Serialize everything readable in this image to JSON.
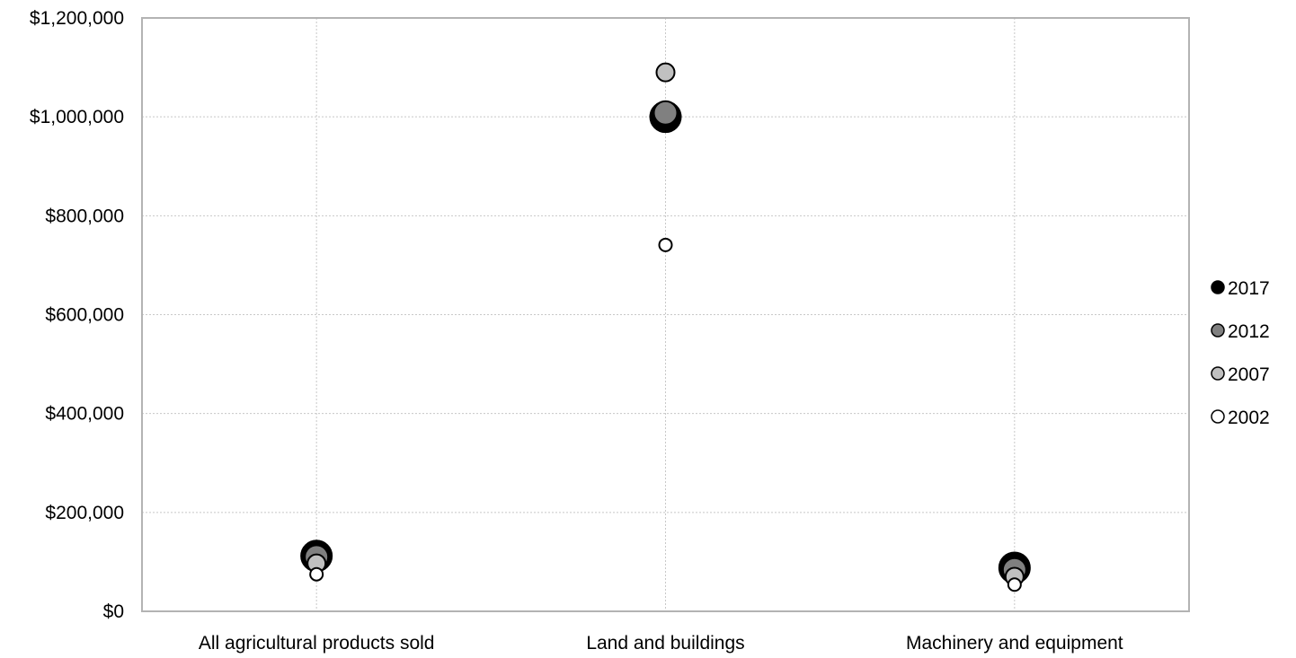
{
  "chart_data": {
    "type": "scatter",
    "title": "",
    "xlabel": "",
    "ylabel": "",
    "categories": [
      "All agricultural products sold",
      "Land and buildings",
      "Machinery and equipment"
    ],
    "ylim": [
      0,
      1200000
    ],
    "y_ticks": [
      0,
      200000,
      400000,
      600000,
      800000,
      1000000,
      1200000
    ],
    "y_tick_labels": [
      "$0",
      "$200,000",
      "$400,000",
      "$600,000",
      "$800,000",
      "$1,000,000",
      "$1,200,000"
    ],
    "grid": true,
    "legend_position": "right",
    "series": [
      {
        "name": "2017",
        "color": "#000000",
        "values": [
          112000,
          1000000,
          88000
        ]
      },
      {
        "name": "2012",
        "color": "#808080",
        "values": [
          110000,
          1008000,
          84000
        ]
      },
      {
        "name": "2007",
        "color": "#c0c0c0",
        "values": [
          97000,
          1090000,
          70000
        ]
      },
      {
        "name": "2002",
        "color": "#ffffff",
        "values": [
          75000,
          741000,
          54000
        ]
      }
    ]
  }
}
